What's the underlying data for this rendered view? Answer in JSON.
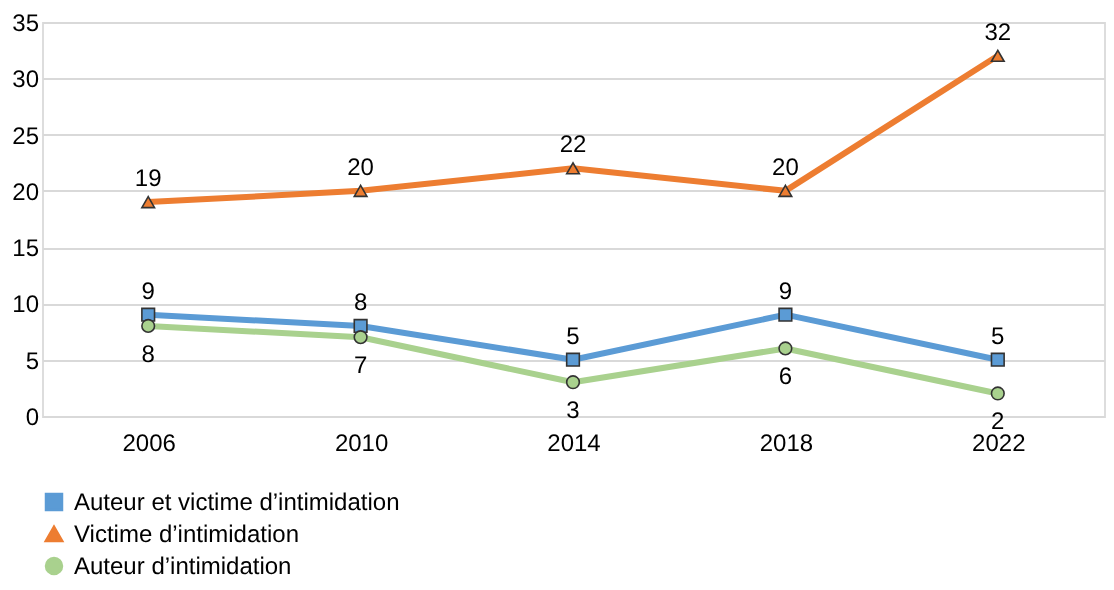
{
  "chart_data": {
    "type": "line",
    "categories": [
      "2006",
      "2010",
      "2014",
      "2018",
      "2022"
    ],
    "series": [
      {
        "name": "Auteur et victime d’intimidation",
        "color": "#5b9bd5",
        "marker": "square",
        "values": [
          9,
          8,
          5,
          9,
          5
        ]
      },
      {
        "name": "Victime d’intimidation",
        "color": "#ed7d31",
        "marker": "triangle",
        "values": [
          19,
          20,
          22,
          20,
          32
        ]
      },
      {
        "name": "Auteur d’intimidation",
        "color": "#a9d18e",
        "marker": "circle",
        "values": [
          8,
          7,
          3,
          6,
          2
        ]
      }
    ],
    "ylim": [
      0,
      35
    ],
    "yticks": [
      0,
      5,
      10,
      15,
      20,
      25,
      30,
      35
    ],
    "grid": "y",
    "legend": "bottom",
    "data_labels": true,
    "line_style": "solid"
  }
}
